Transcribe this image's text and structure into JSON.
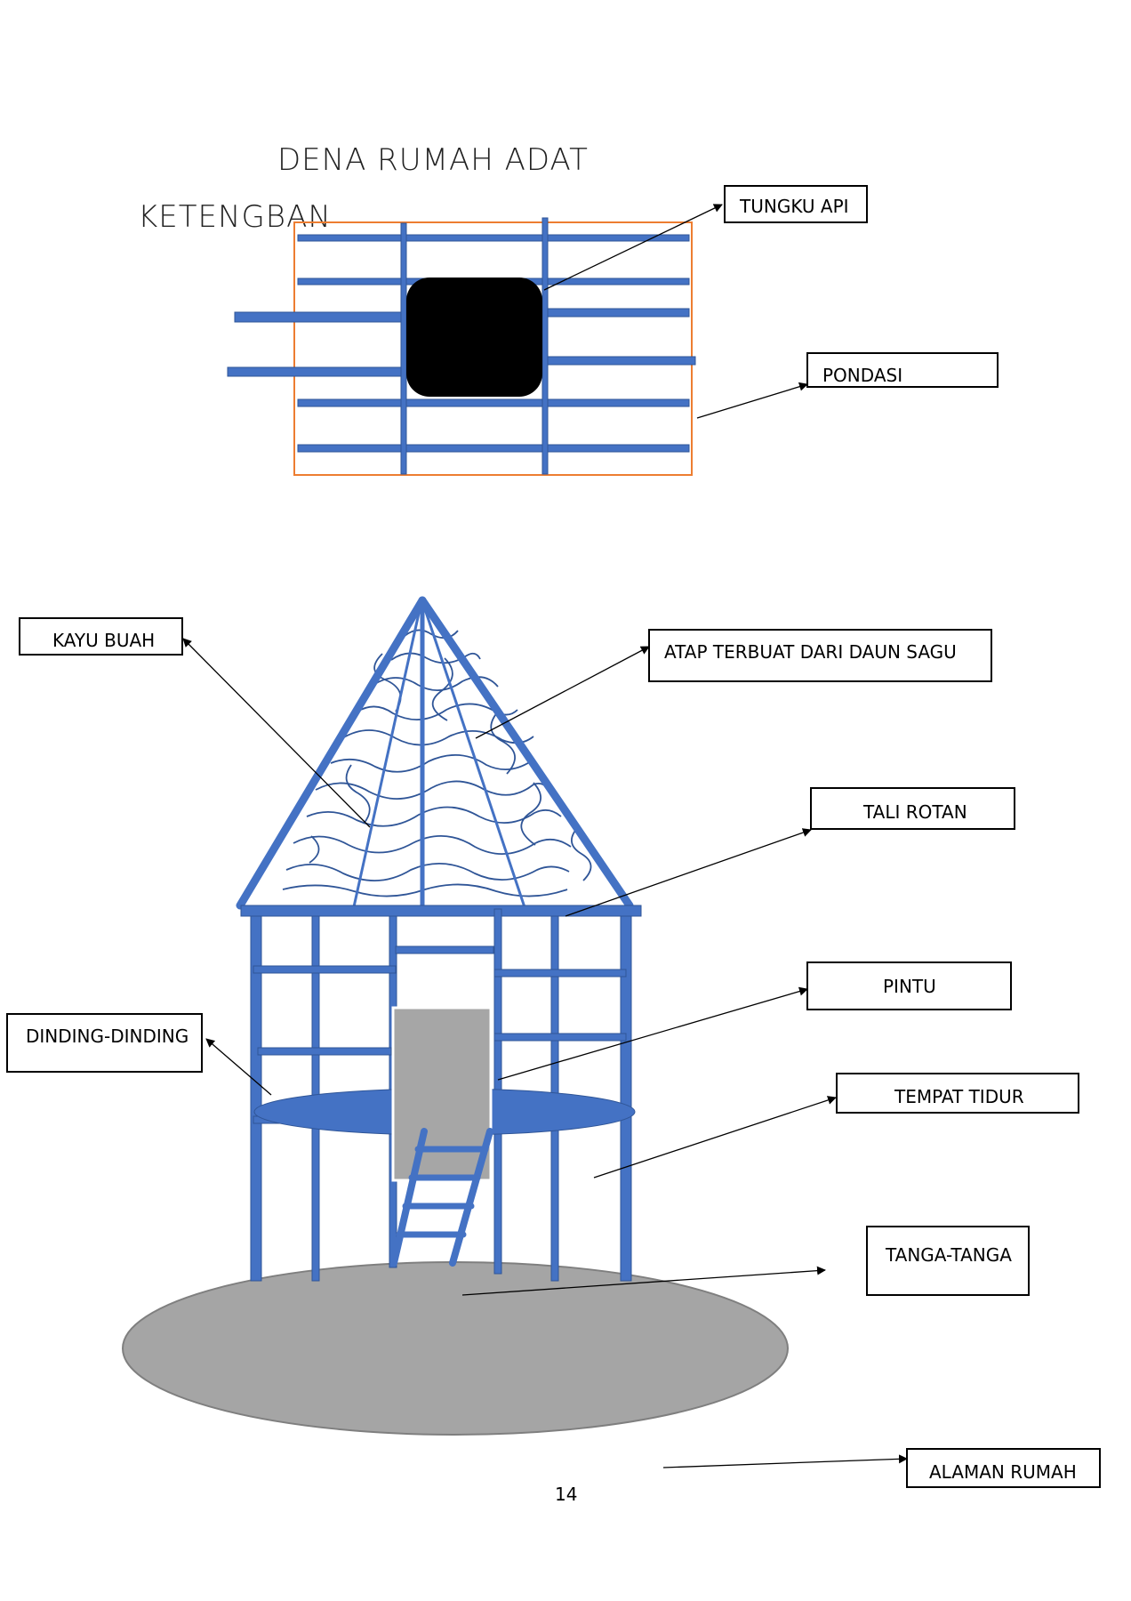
{
  "title": {
    "line1": "DENA RUMAH ADAT",
    "line2": "KETENGBAN"
  },
  "labels": {
    "tungku_api": "TUNGKU API",
    "pondasi": "PONDASI",
    "kayu_buah": "KAYU BUAH",
    "atap": "ATAP TERBUAT DARI DAUN SAGU",
    "tali_rotan": "TALI ROTAN",
    "pintu": "PINTU",
    "dinding": "DINDING-DINDING",
    "tempat_tidur": "TEMPAT TIDUR",
    "tanga_tanga": "TANGA-TANGA",
    "alaman_rumah": "ALAMAN RUMAH"
  },
  "page_number": "14",
  "colors": {
    "beam_blue": "#4472c4",
    "beam_edge": "#2f5597",
    "foundation_border": "#ed7d31",
    "fireplace": "#000000",
    "ground_grey": "#a5a5a5",
    "door_grey": "#a6a6a6"
  }
}
